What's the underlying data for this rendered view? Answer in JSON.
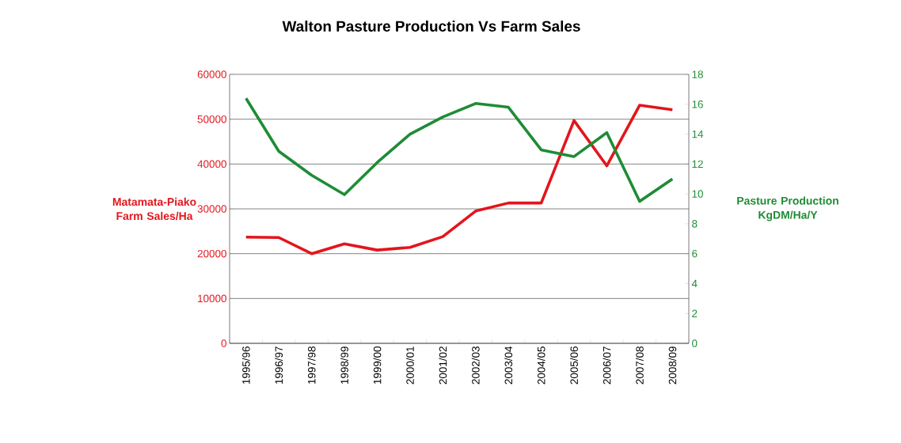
{
  "chart_data": {
    "type": "line",
    "title": "Walton Pasture Production Vs Farm Sales",
    "ylabel": "Matamata-Piako Farm Sales/Ha",
    "y2label": "Pasture Production KgDM/Ha/Y",
    "categories": [
      "1995/96",
      "1996/97",
      "1997/98",
      "1998/99",
      "1999/00",
      "2000/01",
      "2001/02",
      "2002/03",
      "2003/04",
      "2004/05",
      "2005/06",
      "2006/07",
      "2007/08",
      "2008/09"
    ],
    "series": [
      {
        "color": "#e3151c",
        "values": [
          23700,
          23600,
          20000,
          22200,
          20800,
          21400,
          23800,
          29500,
          31300,
          31300,
          49700,
          39600,
          53100,
          52100
        ]
      },
      {
        "color": "#1e8c35",
        "axis": "y2",
        "values": [
          16.4,
          12.85,
          11.25,
          9.95,
          12.1,
          14.0,
          15.15,
          16.05,
          15.8,
          12.95,
          12.5,
          14.1,
          9.5,
          11.0
        ]
      }
    ],
    "ylim": [
      0,
      60000
    ],
    "yticks": [
      0,
      10000,
      20000,
      30000,
      40000,
      50000,
      60000
    ],
    "y2lim": [
      0,
      18
    ],
    "y2ticks": [
      0,
      2,
      4,
      6,
      8,
      10,
      12,
      14,
      16,
      18
    ],
    "grid": "y",
    "marker": "none",
    "line_style": "solid"
  }
}
